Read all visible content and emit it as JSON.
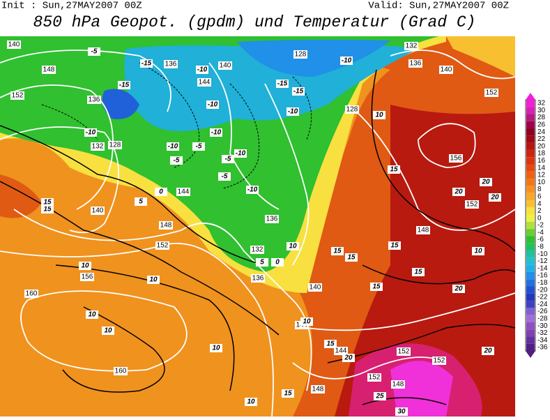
{
  "header": {
    "init": "Init : Sun,27MAY2007 00Z",
    "valid": "Valid: Sun,27MAY2007 00Z",
    "title": "850 hPa Geopot. (gpdm) und Temperatur (Grad C)"
  },
  "map": {
    "geopotential_labels": [
      140,
      148,
      152,
      136,
      132,
      128,
      140,
      136,
      144,
      140,
      128,
      132,
      136,
      128,
      140,
      152,
      156,
      152,
      148,
      144,
      136,
      132,
      136,
      140,
      148,
      152,
      156,
      160,
      144,
      160,
      148,
      144,
      152,
      152,
      152,
      148
    ],
    "temperature_labels": [
      -5,
      -15,
      -15,
      -10,
      -10,
      -10,
      -15,
      -15,
      -10,
      -10,
      -10,
      -5,
      -10,
      -5,
      -5,
      -10,
      -5,
      -10,
      0,
      5,
      15,
      15,
      5,
      0,
      10,
      10,
      10,
      10,
      10,
      15,
      15,
      15,
      15,
      15,
      10,
      20,
      20,
      20,
      15,
      10,
      20,
      15,
      10,
      15,
      20,
      25,
      30,
      10,
      10,
      20
    ]
  },
  "colorbar": {
    "labels": [
      32,
      30,
      28,
      26,
      24,
      22,
      20,
      18,
      16,
      14,
      12,
      10,
      8,
      6,
      4,
      2,
      0,
      -2,
      -4,
      -6,
      -8,
      -10,
      -12,
      -14,
      -16,
      -18,
      -20,
      -22,
      -24,
      -26,
      -28,
      -30,
      -32,
      -34,
      -36
    ],
    "colors": [
      "#f020d8",
      "#d820b8",
      "#b81880",
      "#a00048",
      "#8c0020",
      "#a00818",
      "#b81410",
      "#cc2410",
      "#dc3410",
      "#e84810",
      "#f06010",
      "#f07818",
      "#f89020",
      "#f8a828",
      "#f8c030",
      "#f8e040",
      "#f0f040",
      "#b0e040",
      "#68d030",
      "#30c030",
      "#20c060",
      "#20c0a0",
      "#20c0d0",
      "#20b0e8",
      "#2090e8",
      "#2070e0",
      "#2050d0",
      "#2038c0",
      "#4040c0",
      "#8060d0",
      "#a070d8",
      "#9050c0",
      "#8040b0",
      "#6030a0",
      "#502080"
    ]
  }
}
